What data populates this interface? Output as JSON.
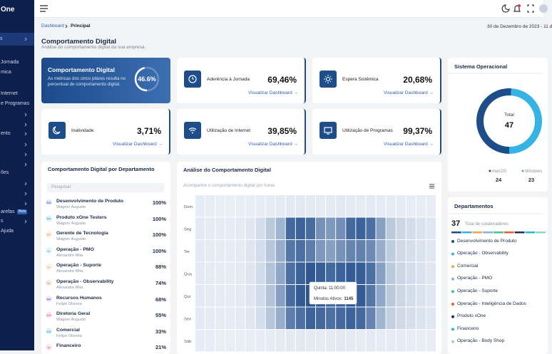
{
  "sidebar": {
    "brand": "One",
    "items": [
      "s",
      "Jornada",
      "mica",
      "Internet",
      "e Programas",
      "ento",
      "ões",
      "arefas",
      "s",
      "Ajuda"
    ],
    "badge": "Beta"
  },
  "breadcrumb": [
    "Dashboard",
    "Principal"
  ],
  "date": "30 de Dezembro de 2023 - 11 d",
  "header": {
    "title": "Comportamento Digital",
    "subtitle": "Análise do comportamento digital da sua empresa."
  },
  "summary": {
    "title": "Comportamento Digital",
    "description": [
      "As métricas dos cinco pilares resulta no",
      "percentual de comportamento digital."
    ],
    "score": 46.6,
    "score_label": "46.6%"
  },
  "kpis": [
    {
      "label": "Aderência à Jornada",
      "value": "69,46%",
      "link": "Visualizar Dashboard →"
    },
    {
      "label": "Espera Sistêmica",
      "value": "20,68%",
      "link": "Visualizar Dashboard →"
    },
    {
      "label": "Inatividade",
      "value": "3,71%",
      "link": "Visualizar Dashboard →"
    },
    {
      "label": "Utilização de Internet",
      "value": "39,85%",
      "link": "Visualizar Dashboard →"
    },
    {
      "label": "Utilização de Programas",
      "value": "99,37%",
      "link": "Visualizar Dashboard →"
    }
  ],
  "departments_table": {
    "title": "Comportamento Digital por Departamento",
    "search_placeholder": "Pesquisar",
    "rows": [
      {
        "initials": "DG",
        "name": "Desenvolvimento de Produto",
        "owner": "Wagner Augusto",
        "percent": "100%",
        "color": "#3b6fd4"
      },
      {
        "initials": "PX",
        "name": "Produto xOne Testers",
        "owner": "Wagner Augusto",
        "percent": "100%",
        "color": "#22a6c9"
      },
      {
        "initials": "GT",
        "name": "Gerente de Tecnologia",
        "owner": "Wagner Augusto",
        "percent": "100%",
        "color": "#e8a23a"
      },
      {
        "initials": "O-",
        "name": "Operação - PMO",
        "owner": "Alexandre Mita",
        "percent": "100%",
        "color": "#35b3e6"
      },
      {
        "initials": "O-",
        "name": "Operação - Suporte",
        "owner": "Alexandre Mita",
        "percent": "88%",
        "color": "#e8a23a"
      },
      {
        "initials": "O-",
        "name": "Operação - Observability",
        "owner": "Alexandre Mita",
        "percent": "74%",
        "color": "#e07b39"
      },
      {
        "initials": "RH",
        "name": "Recursos Humanos",
        "owner": "Felipe Oliveira",
        "percent": "68%",
        "color": "#8a63d2"
      },
      {
        "initials": "DG",
        "name": "Diretoria Geral",
        "owner": "Wagner Augusto",
        "percent": "55%",
        "color": "#e05d9c"
      },
      {
        "initials": "CO",
        "name": "Comercial",
        "owner": "Felipe Oliveira",
        "percent": "33%",
        "color": "#22a6c9"
      },
      {
        "initials": "FI",
        "name": "Financeiro",
        "percent": "21%",
        "color": "#e05d9c"
      }
    ]
  },
  "departments": {
    "title": "Departamentos",
    "total": "37",
    "total_label": "Total de colaboradores",
    "items": [
      {
        "name": "Desenvolvimento de Produto",
        "color": "#1d4e89"
      },
      {
        "name": "Operação - Observability",
        "color": "#35b3e6"
      },
      {
        "name": "Comercial",
        "color": "#f0a645"
      },
      {
        "name": "Operação - PMO",
        "color": "#7fb3e0"
      },
      {
        "name": "Operação - Suporte",
        "color": "#3cc48a"
      },
      {
        "name": "Operação - Inteligência de Dados",
        "color": "#e0603a"
      },
      {
        "name": "Produto xOne",
        "color": "#17315e"
      },
      {
        "name": "Financeiro",
        "color": "#28b8d6"
      },
      {
        "name": "Operação - Body Shop",
        "color": "#8fd6d0"
      }
    ]
  },
  "chart_data": [
    {
      "type": "pie",
      "title": "Sistema Operacional",
      "center_label": "Total",
      "total": 47,
      "categories": [
        "macOS",
        "Windows"
      ],
      "values": [
        24,
        23
      ],
      "colors": [
        "#1d4e89",
        "#35b3e6"
      ],
      "donut": true
    },
    {
      "type": "heatmap",
      "title": "Análise do Comportamento Digital",
      "subtitle": "Acompanhe o comportamento digital por horas",
      "rows": [
        "Dom",
        "Seg",
        "Ter",
        "Qua",
        "Qui",
        "Sex",
        "Sáb"
      ],
      "values": [
        [
          40,
          35,
          30,
          30,
          30,
          35,
          40,
          45,
          50,
          60,
          70,
          60,
          55,
          60,
          70,
          60,
          55,
          50,
          50,
          45,
          45,
          40,
          40,
          35
        ],
        [
          60,
          50,
          45,
          45,
          50,
          80,
          150,
          300,
          450,
          1000,
          1050,
          980,
          700,
          650,
          720,
          1000,
          1050,
          950,
          600,
          300,
          200,
          150,
          120,
          80
        ],
        [
          60,
          50,
          45,
          45,
          50,
          90,
          160,
          320,
          500,
          900,
          950,
          850,
          650,
          600,
          700,
          800,
          820,
          760,
          500,
          280,
          180,
          140,
          110,
          80
        ],
        [
          60,
          50,
          45,
          45,
          50,
          90,
          170,
          350,
          550,
          950,
          1050,
          1120,
          1080,
          1000,
          1050,
          1100,
          1080,
          950,
          600,
          300,
          200,
          150,
          120,
          80
        ],
        [
          60,
          50,
          45,
          45,
          50,
          90,
          170,
          350,
          600,
          980,
          1100,
          1145,
          1120,
          1050,
          1080,
          1130,
          1100,
          900,
          550,
          300,
          200,
          150,
          120,
          80
        ],
        [
          60,
          50,
          45,
          45,
          50,
          80,
          150,
          320,
          500,
          850,
          950,
          1050,
          1000,
          950,
          1000,
          1050,
          1000,
          800,
          450,
          250,
          180,
          140,
          110,
          80
        ],
        [
          40,
          35,
          30,
          30,
          30,
          35,
          40,
          45,
          50,
          60,
          70,
          60,
          55,
          60,
          70,
          60,
          55,
          50,
          50,
          45,
          45,
          40,
          40,
          35
        ]
      ],
      "color_range": [
        "#eef2f8",
        "#2b5591"
      ],
      "tooltip": {
        "title": "Quinta: 11:00:00",
        "label": "Minutos Ativos:",
        "value": 1145
      }
    }
  ]
}
